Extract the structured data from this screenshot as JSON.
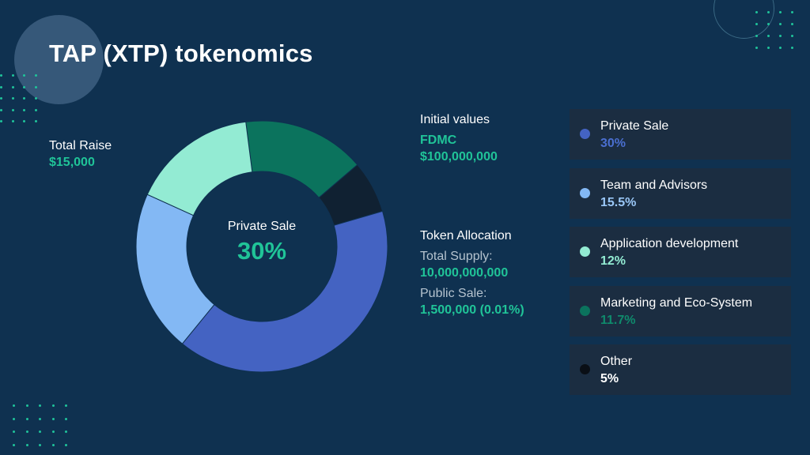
{
  "title": "TAP (XTP) tokenomics",
  "total_raise": {
    "label": "Total Raise",
    "value": "$15,000"
  },
  "initial_values": {
    "label": "Initial values",
    "fdmc_label": "FDMC",
    "fdmc_value": "$100,000,000"
  },
  "token_allocation": {
    "label": "Token Allocation",
    "total_supply_label": "Total Supply:",
    "total_supply_value": "10,000,000,000",
    "public_sale_label": "Public Sale:",
    "public_sale_value": "1,500,000 (0.01%)"
  },
  "chart_center": {
    "label": "Private Sale",
    "value": "30%"
  },
  "colors": {
    "background": "#0f3150",
    "accent": "#20c498",
    "card": "#1b2d41"
  },
  "chart_data": {
    "type": "pie",
    "donut": true,
    "legend_placement": "right",
    "slices": [
      {
        "name": "Private Sale",
        "value": 30,
        "label": "30%",
        "color": "#4463c2",
        "label_color": "#4a6fd0"
      },
      {
        "name": "Team and Advisors",
        "value": 15.5,
        "label": "15.5%",
        "color": "#83b8f4",
        "label_color": "#9ac7f7"
      },
      {
        "name": "Application development",
        "value": 12,
        "label": "12%",
        "color": "#93ebd3",
        "label_color": "#93ebd3"
      },
      {
        "name": "Marketing and Eco-System",
        "value": 11.7,
        "label": "11.7%",
        "color": "#0b735d",
        "label_color": "#0f8a6c"
      },
      {
        "name": "Other",
        "value": 5,
        "label": "5%",
        "color": "#102132",
        "label_color": "#ffffff"
      }
    ]
  }
}
